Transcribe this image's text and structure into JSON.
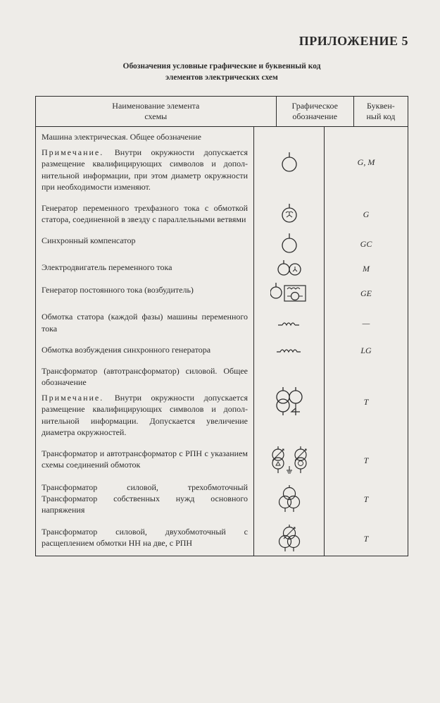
{
  "appendix_title": "ПРИЛОЖЕНИЕ 5",
  "subtitle_line1": "Обозначения условные графические и буквенный код",
  "subtitle_line2": "элементов электрических схем",
  "header": {
    "name_line1": "Наименование элемента",
    "name_line2": "схемы",
    "graphic_line1": "Графическое",
    "graphic_line2": "обозначение",
    "code_line1": "Буквен-",
    "code_line2": "ный код"
  },
  "rows": [
    {
      "name_strong": "Машина электрическая. Общее обозначение",
      "note_label": "Примечание.",
      "note": "Внутри окружности допускается размещение квалифицирующих символов и допол­нительной информации, при этом диаметр окруж­ности при необходимости изменяют.",
      "code": "G, M",
      "symbol": "circle-lead"
    },
    {
      "name": "Генератор переменного трехфазного тока с обмоткой статора, соединенной в звезду с параллельными ветвями",
      "code": "G",
      "symbol": "circle-star"
    },
    {
      "name": "Синхронный компенсатор",
      "code": "GC",
      "symbol": "circle-lead"
    },
    {
      "name": "Электродвигатель переменного тока",
      "code": "M",
      "symbol": "two-circles-y"
    },
    {
      "name": "Генератор постоянного тока (возбудитель)",
      "code": "GE",
      "symbol": "dc-generator"
    },
    {
      "name": "Обмотка статора (каждой фазы) машины переменного тока",
      "code": "—",
      "symbol": "coil-open"
    },
    {
      "name": "Обмотка возбуждения синхронного генератора",
      "code": "LG",
      "symbol": "coil"
    },
    {
      "name_strong": "Трансформатор (автотрансформатор) силовой. Общее обозначение",
      "note_label": "Примечание.",
      "note": "Внутри окружности допускается размещение квалифицирующих символов и допол­нительной информации. Допускается увеличение диаметра окружностей.",
      "code": "T",
      "symbol": "transformer"
    },
    {
      "name": "Трансформатор и автотрансформатор с РПН с указанием схемы соединений обмоток",
      "code": "T",
      "symbol": "transformer-rpn"
    },
    {
      "name": "Трансформатор силовой, трехобмоточный Трансформатор собственных нужд основного напряжения",
      "code": "T",
      "symbol": "transformer-3w"
    },
    {
      "name": "Трансформатор силовой, двухобмоточный с расщеплением обмотки НН на две, с РПН",
      "code": "T",
      "symbol": "transformer-split"
    }
  ],
  "colors": {
    "bg": "#eeece8",
    "ink": "#2b2b2b"
  }
}
